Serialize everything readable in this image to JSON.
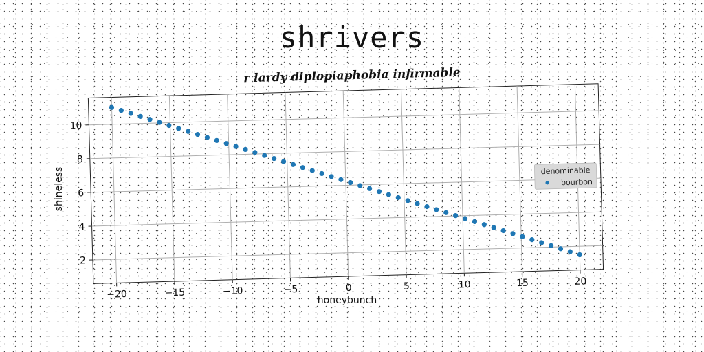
{
  "chart_data": {
    "type": "scatter",
    "title": "shrivers",
    "subtitle": "r lardy diplopiaphobia infirmable",
    "xlabel": "honeybunch",
    "ylabel": "shineless",
    "xlim": [
      -22,
      22
    ],
    "ylim": [
      0.6,
      11.6
    ],
    "xticks": [
      -20,
      -15,
      -10,
      -5,
      0,
      5,
      10,
      15,
      20
    ],
    "yticks": [
      2,
      4,
      6,
      8,
      10
    ],
    "grid": true,
    "legend": {
      "title": "denominable",
      "placement": "right",
      "entries": [
        "bourbon"
      ]
    },
    "colors": {
      "series": "#1f77b4",
      "grid": "#b0b0b0",
      "axis": "#222222"
    },
    "series": [
      {
        "name": "bourbon",
        "x_start": -20,
        "x_end": 20,
        "y_start": 11.0,
        "y_end": 1.5,
        "count": 50
      }
    ]
  }
}
